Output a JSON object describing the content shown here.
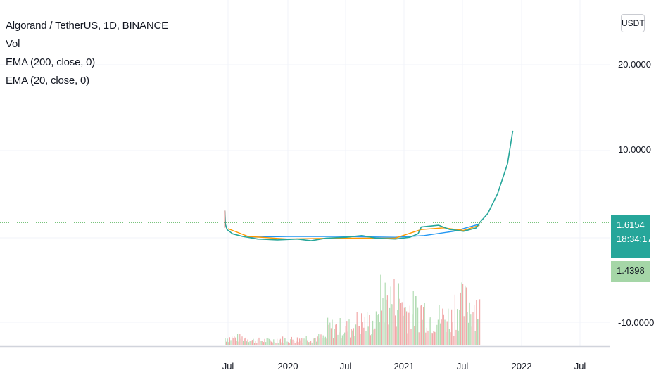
{
  "header": {
    "symbol_title": "Algorand / TetherUS, 1D, BINANCE",
    "indicators": [
      "Vol",
      "EMA (200, close, 0)",
      "EMA (20, close, 0)"
    ],
    "currency_button": "USDT"
  },
  "price_axis": {
    "ticks": [
      "20.0000",
      "10.0000",
      "-10.0000"
    ],
    "last_price": "1.6154",
    "countdown": "18:34:17",
    "ema_value": "1.4398"
  },
  "time_axis": {
    "ticks": [
      "Jul",
      "2020",
      "Jul",
      "2021",
      "Jul",
      "2022",
      "Jul"
    ]
  },
  "colors": {
    "up": "#26a69a",
    "down": "#ef5350",
    "ema200": "#2196f3",
    "ema20": "#ff9800",
    "price_line": "#4caf50",
    "volume_up": "#a5d6a7",
    "volume_down": "#ef9a9a"
  },
  "chart_data": {
    "type": "line",
    "title": "Algorand / TetherUS, 1D, BINANCE",
    "xlabel": "",
    "ylabel": "",
    "x_range": [
      "2019-06-01",
      "2022-09-01"
    ],
    "y_ticks": [
      20,
      10,
      -10
    ],
    "grid": true,
    "series": [
      {
        "name": "",
        "x": [
          "2019-06-21",
          "2019-06-23",
          "2019-06-28",
          "2019-07-15",
          "2019-08-15",
          "2019-10-01",
          "2019-12-01",
          "2020-02-01",
          "2020-03-15",
          "2020-05-01",
          "2020-07-01",
          "2020-08-20",
          "2020-10-01",
          "2020-12-01",
          "2021-01-15",
          "2021-02-10",
          "2021-02-20",
          "2021-04-15",
          "2021-05-20",
          "2021-07-01",
          "2021-08-10",
          "2021-08-20",
          "2021-09-15",
          "2021-10-15",
          "2021-11-15",
          "2021-12-01"
        ],
        "y": [
          3.0,
          1.4,
          0.8,
          0.3,
          0.0,
          -0.3,
          -0.4,
          -0.3,
          -0.5,
          -0.2,
          -0.1,
          0.1,
          -0.2,
          -0.3,
          -0.1,
          0.3,
          1.1,
          1.3,
          0.8,
          0.6,
          1.0,
          1.6,
          2.7,
          5.0,
          8.5,
          12.3
        ]
      },
      {
        "name": "",
        "x": [
          "2019-09-01",
          "2020-01-01",
          "2020-06-01",
          "2020-12-01",
          "2021-03-01",
          "2021-06-01",
          "2021-08-20"
        ],
        "y": [
          -0.1,
          0.0,
          0.0,
          -0.1,
          0.1,
          0.6,
          1.44
        ]
      },
      {
        "name": "",
        "x": [
          "2019-07-01",
          "2019-09-01",
          "2020-01-01",
          "2020-06-01",
          "2020-12-01",
          "2021-02-20",
          "2021-05-01",
          "2021-07-01",
          "2021-08-20"
        ],
        "y": [
          0.9,
          0.0,
          -0.3,
          -0.2,
          -0.2,
          0.8,
          1.0,
          0.7,
          1.3
        ]
      }
    ],
    "volume": {
      "x": [
        "2019-07",
        "2019-10",
        "2020-01",
        "2020-04",
        "2020-07",
        "2020-10",
        "2021-01",
        "2021-04",
        "2021-07",
        "2021-08"
      ],
      "relative": [
        0.15,
        0.1,
        0.12,
        0.15,
        0.35,
        0.45,
        0.9,
        0.7,
        0.55,
        0.8
      ]
    }
  }
}
